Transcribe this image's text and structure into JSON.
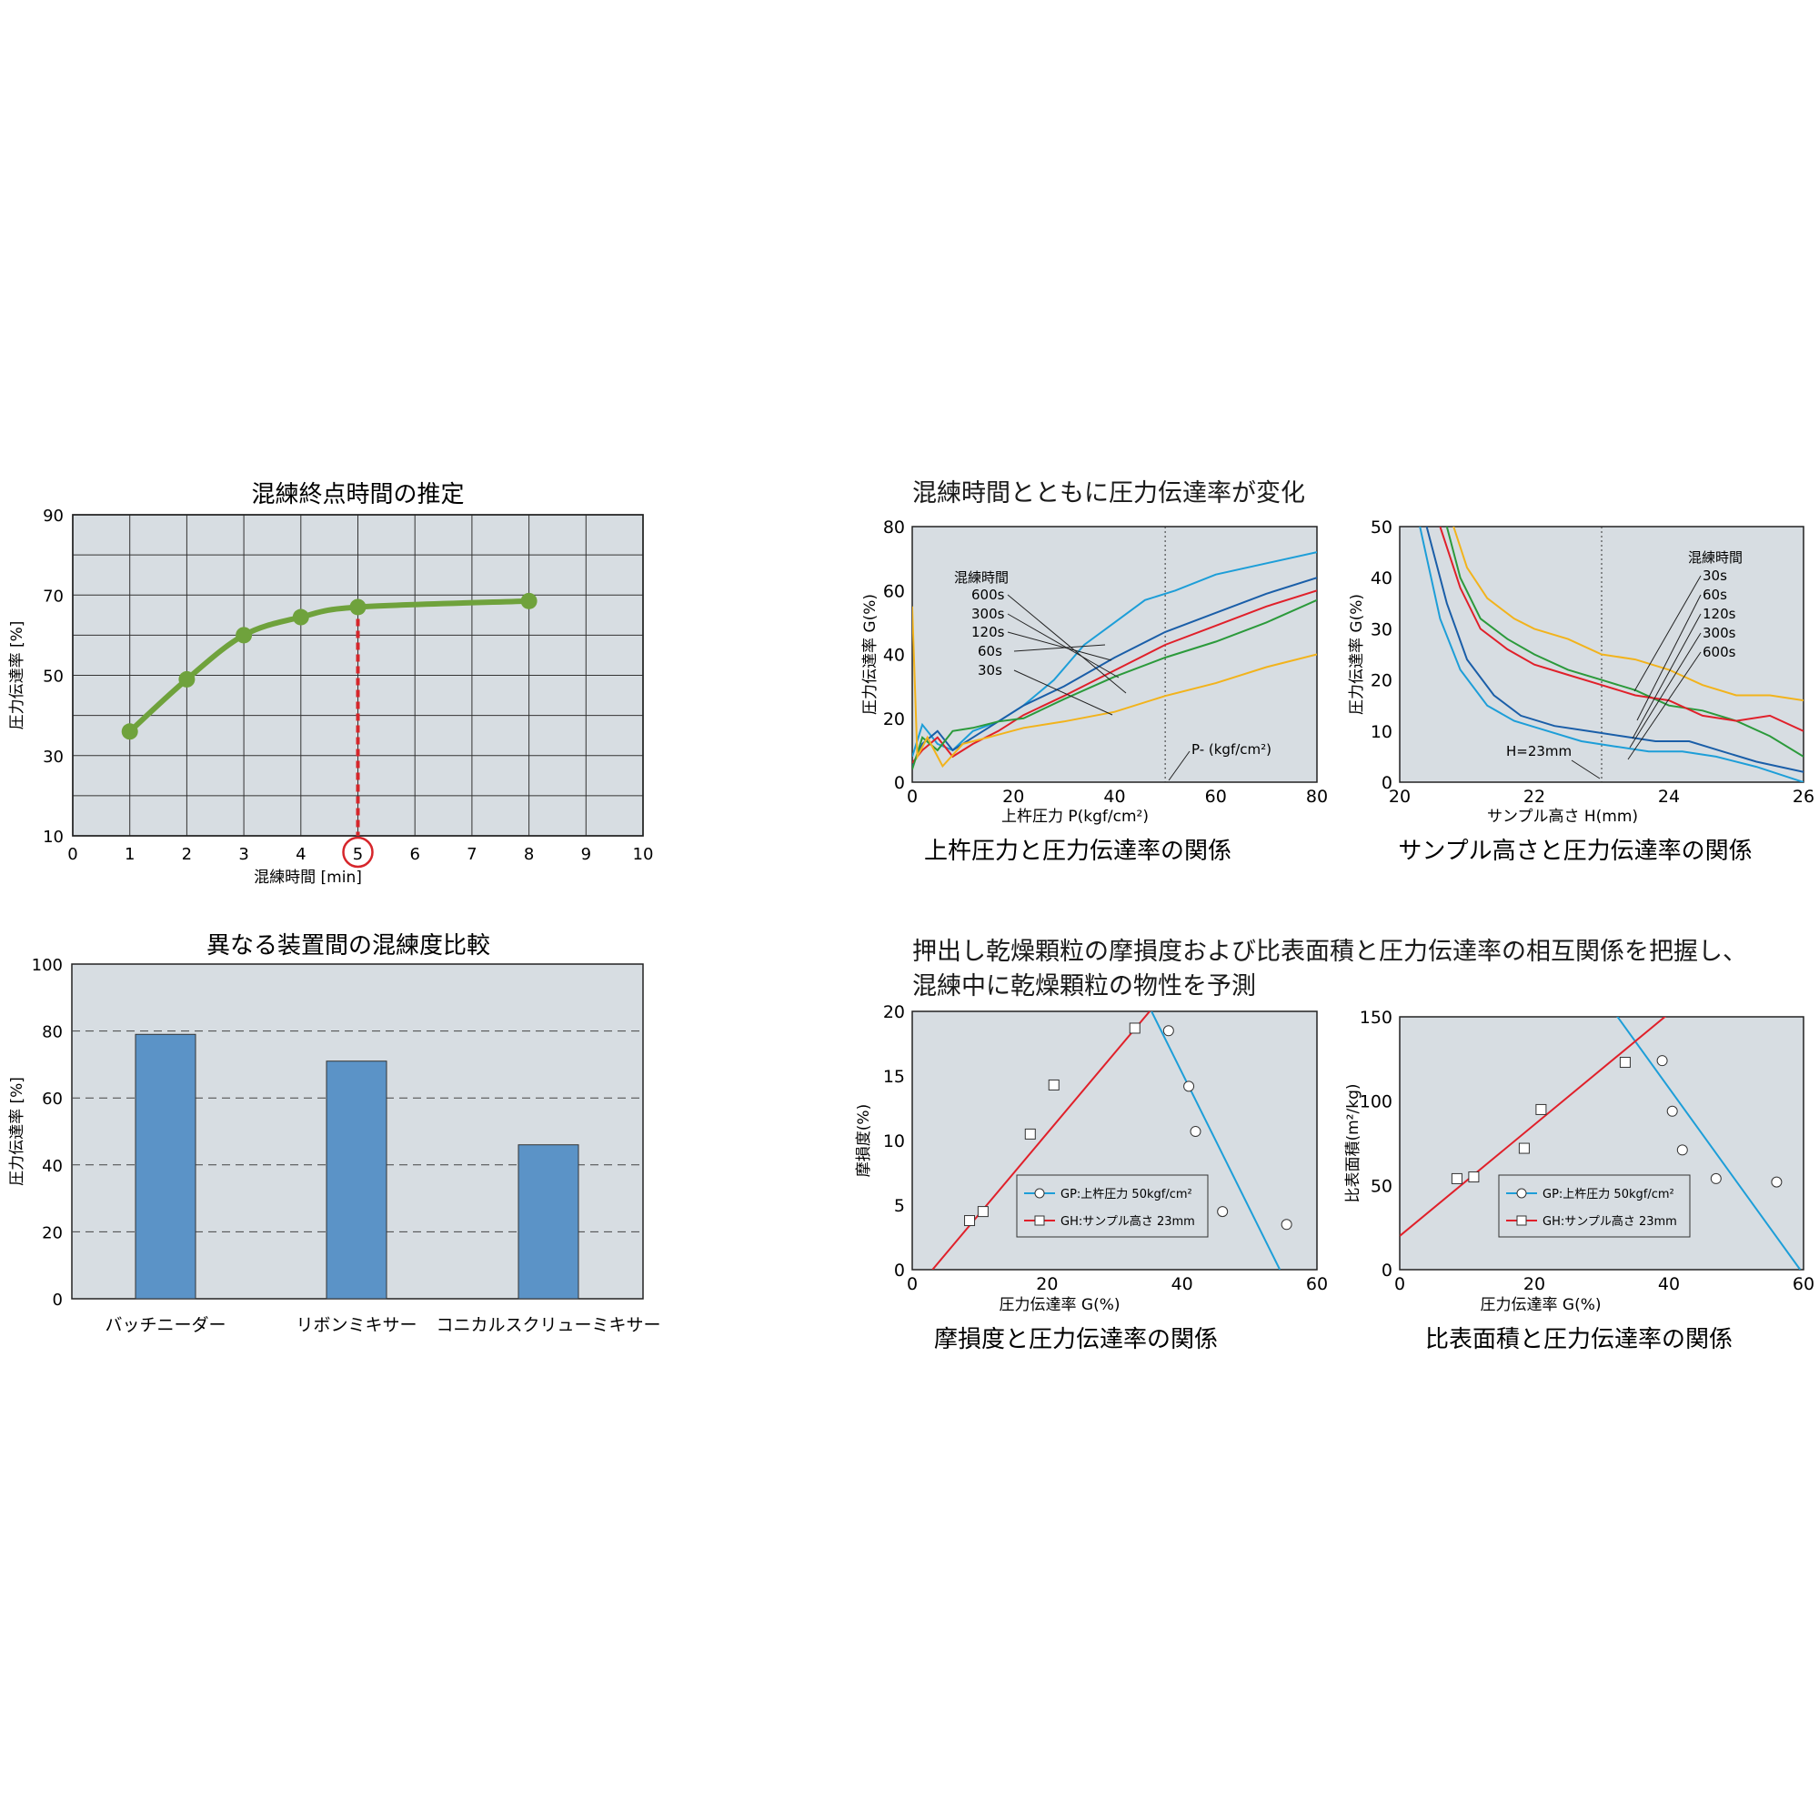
{
  "chart_data": [
    {
      "id": "endpoint",
      "type": "line",
      "title": "混練終点時間の推定",
      "xlabel": "混練時間 [min]",
      "ylabel": "圧力伝達率 [%]",
      "xlim": [
        0,
        10
      ],
      "ylim": [
        10,
        90
      ],
      "x_ticks": [
        0,
        1,
        2,
        3,
        4,
        5,
        6,
        7,
        8,
        9,
        10
      ],
      "y_ticks": [
        10,
        30,
        50,
        70,
        90
      ],
      "grid": true,
      "x": [
        1,
        2,
        3,
        4,
        5,
        8
      ],
      "y": [
        36,
        49,
        60,
        64.5,
        67,
        68.5
      ],
      "highlight_x": 5,
      "colors": {
        "line": "#6fa23c",
        "highlight": "#d6262b",
        "plot_bg": "#d7dde2"
      }
    },
    {
      "id": "devices",
      "type": "bar",
      "title": "異なる装置間の混練度比較",
      "ylabel": "圧力伝達率 [%]",
      "ylim": [
        0,
        100
      ],
      "y_ticks": [
        0,
        20,
        40,
        60,
        80,
        100
      ],
      "categories": [
        "バッチニーダー",
        "リボンミキサー",
        "コニカルスクリューミキサー"
      ],
      "values": [
        79,
        71,
        46
      ],
      "grid": "dashed",
      "colors": {
        "bar": "#5b93c7",
        "plot_bg": "#d7dde2"
      }
    },
    {
      "id": "pressure",
      "type": "line",
      "caption": "上杵圧力と圧力伝達率の関係",
      "xlabel": "上杵圧力 P(kgf/cm²)",
      "ylabel": "圧力伝達率 G(%)",
      "xlim": [
        0,
        80
      ],
      "ylim": [
        0,
        80
      ],
      "x_ticks": [
        0,
        20,
        40,
        60,
        80
      ],
      "y_ticks": [
        0,
        20,
        40,
        60,
        80
      ],
      "vline": 50,
      "annotation": "P- (kgf/cm²)",
      "legend_title": "混練時間",
      "series": [
        {
          "name": "600s",
          "color": "#1d9ed8",
          "x": [
            0,
            2,
            5,
            8,
            12,
            17,
            22,
            28,
            34,
            40,
            46,
            52,
            60,
            80
          ],
          "y": [
            8,
            18,
            12,
            10,
            16,
            19,
            24,
            32,
            43,
            50,
            57,
            60,
            65,
            72
          ]
        },
        {
          "name": "300s",
          "color": "#1a5ea8",
          "x": [
            0,
            2,
            5,
            8,
            12,
            17,
            22,
            30,
            40,
            50,
            60,
            70,
            80
          ],
          "y": [
            5,
            12,
            16,
            10,
            14,
            19,
            24,
            30,
            39,
            47,
            53,
            59,
            64
          ]
        },
        {
          "name": "120s",
          "color": "#e0202a",
          "x": [
            0,
            2,
            5,
            8,
            12,
            17,
            22,
            30,
            40,
            50,
            60,
            70,
            80
          ],
          "y": [
            6,
            10,
            14,
            8,
            12,
            16,
            21,
            27,
            35,
            43,
            49,
            55,
            60
          ]
        },
        {
          "name": "60s",
          "color": "#2b9a3b",
          "x": [
            0,
            2,
            5,
            8,
            12,
            17,
            22,
            30,
            40,
            50,
            60,
            70,
            80
          ],
          "y": [
            4,
            14,
            10,
            16,
            17,
            19,
            20,
            26,
            33,
            39,
            44,
            50,
            57
          ]
        },
        {
          "name": "30s",
          "color": "#f2b31c",
          "x": [
            0,
            1,
            3,
            6,
            10,
            15,
            22,
            30,
            40,
            50,
            60,
            70,
            80
          ],
          "y": [
            55,
            8,
            14,
            5,
            12,
            14,
            17,
            19,
            22,
            27,
            31,
            36,
            40
          ]
        }
      ]
    },
    {
      "id": "height",
      "type": "line",
      "caption": "サンプル高さと圧力伝達率の関係",
      "xlabel": "サンプル高さ H(mm)",
      "ylabel": "圧力伝達率 G(%)",
      "xlim": [
        20,
        26
      ],
      "ylim": [
        0,
        50
      ],
      "x_ticks": [
        20,
        22,
        24,
        26
      ],
      "y_ticks": [
        0,
        10,
        20,
        30,
        40,
        50
      ],
      "vline": 23,
      "annotation": "H=23mm",
      "legend_title": "混練時間",
      "series": [
        {
          "name": "30s",
          "color": "#f2b31c",
          "x": [
            20.8,
            21,
            21.3,
            21.7,
            22,
            22.5,
            23,
            23.5,
            24,
            24.5,
            25,
            25.5,
            26
          ],
          "y": [
            50,
            42,
            36,
            32,
            30,
            28,
            25,
            24,
            22,
            19,
            17,
            17,
            16
          ]
        },
        {
          "name": "60s",
          "color": "#2b9a3b",
          "x": [
            20.7,
            20.9,
            21.2,
            21.6,
            22,
            22.5,
            23,
            23.5,
            24,
            24.5,
            25,
            25.5,
            26
          ],
          "y": [
            50,
            40,
            32,
            28,
            25,
            22,
            20,
            18,
            15,
            14,
            12,
            9,
            5
          ]
        },
        {
          "name": "120s",
          "color": "#e0202a",
          "x": [
            20.6,
            20.9,
            21.2,
            21.6,
            22,
            22.5,
            23,
            23.5,
            24,
            24.5,
            25,
            25.5,
            26
          ],
          "y": [
            50,
            38,
            30,
            26,
            23,
            21,
            19,
            17,
            16,
            13,
            12,
            13,
            10
          ]
        },
        {
          "name": "300s",
          "color": "#1a5ea8",
          "x": [
            20.4,
            20.7,
            21,
            21.4,
            21.8,
            22.3,
            22.8,
            23.3,
            23.8,
            24.3,
            24.8,
            25.3,
            26
          ],
          "y": [
            50,
            35,
            24,
            17,
            13,
            11,
            10,
            9,
            8,
            8,
            6,
            4,
            2
          ]
        },
        {
          "name": "600s",
          "color": "#1d9ed8",
          "x": [
            20.3,
            20.6,
            20.9,
            21.3,
            21.7,
            22.2,
            22.7,
            23.2,
            23.7,
            24.2,
            24.7,
            25.3,
            26
          ],
          "y": [
            50,
            32,
            22,
            15,
            12,
            10,
            8,
            7,
            6,
            6,
            5,
            3,
            0
          ]
        }
      ]
    },
    {
      "id": "attrition",
      "type": "scatter",
      "caption": "摩損度と圧力伝達率の関係",
      "xlabel": "圧力伝達率 G(%)",
      "ylabel": "摩損度(%)",
      "xlim": [
        0,
        60
      ],
      "ylim": [
        0,
        20
      ],
      "x_ticks": [
        0,
        20,
        40,
        60
      ],
      "y_ticks": [
        0,
        5,
        10,
        15,
        20
      ],
      "series": [
        {
          "name": "GP:上杵圧力 50kgf/cm²",
          "marker": "circle",
          "color": "#1d9ed8",
          "x": [
            38,
            41,
            42,
            46,
            55.5
          ],
          "y": [
            18.5,
            14.2,
            10.7,
            4.5,
            3.5
          ],
          "fit": [
            [
              35,
              20.5
            ],
            [
              54.5,
              0
            ]
          ]
        },
        {
          "name": "GH:サンプル高さ 23mm",
          "marker": "square",
          "color": "#e0202a",
          "x": [
            8.5,
            10.5,
            17.5,
            21,
            33
          ],
          "y": [
            3.8,
            4.5,
            10.5,
            14.3,
            18.7
          ],
          "fit": [
            [
              3,
              0
            ],
            [
              36,
              20.5
            ]
          ]
        }
      ]
    },
    {
      "id": "surface",
      "type": "scatter",
      "caption": "比表面積と圧力伝達率の関係",
      "xlabel": "圧力伝達率 G(%)",
      "ylabel": "比表面積(m²/kg)",
      "xlim": [
        0,
        60
      ],
      "ylim": [
        0,
        150
      ],
      "x_ticks": [
        0,
        20,
        40,
        60
      ],
      "y_ticks": [
        0,
        50,
        100,
        150
      ],
      "series": [
        {
          "name": "GP:上杵圧力 50kgf/cm²",
          "marker": "circle",
          "color": "#1d9ed8",
          "x": [
            39,
            40.5,
            42,
            47,
            56
          ],
          "y": [
            124,
            94,
            71,
            54,
            52
          ],
          "fit": [
            [
              32,
              152
            ],
            [
              59.5,
              0
            ]
          ]
        },
        {
          "name": "GH:サンプル高さ 23mm",
          "marker": "square",
          "color": "#e0202a",
          "x": [
            8.5,
            11,
            18.5,
            21,
            33.5
          ],
          "y": [
            54,
            55,
            72,
            95,
            123
          ],
          "fit": [
            [
              0,
              20
            ],
            [
              40,
              152
            ]
          ]
        }
      ]
    }
  ],
  "texts": {
    "right_top_heading": "混練時間とともに圧力伝達率が変化",
    "right_bottom_heading_1": "押出し乾燥顆粒の摩損度および比表面積と圧力伝達率の相互関係を把握し、",
    "right_bottom_heading_2": "混練中に乾燥顆粒の物性を予測"
  }
}
